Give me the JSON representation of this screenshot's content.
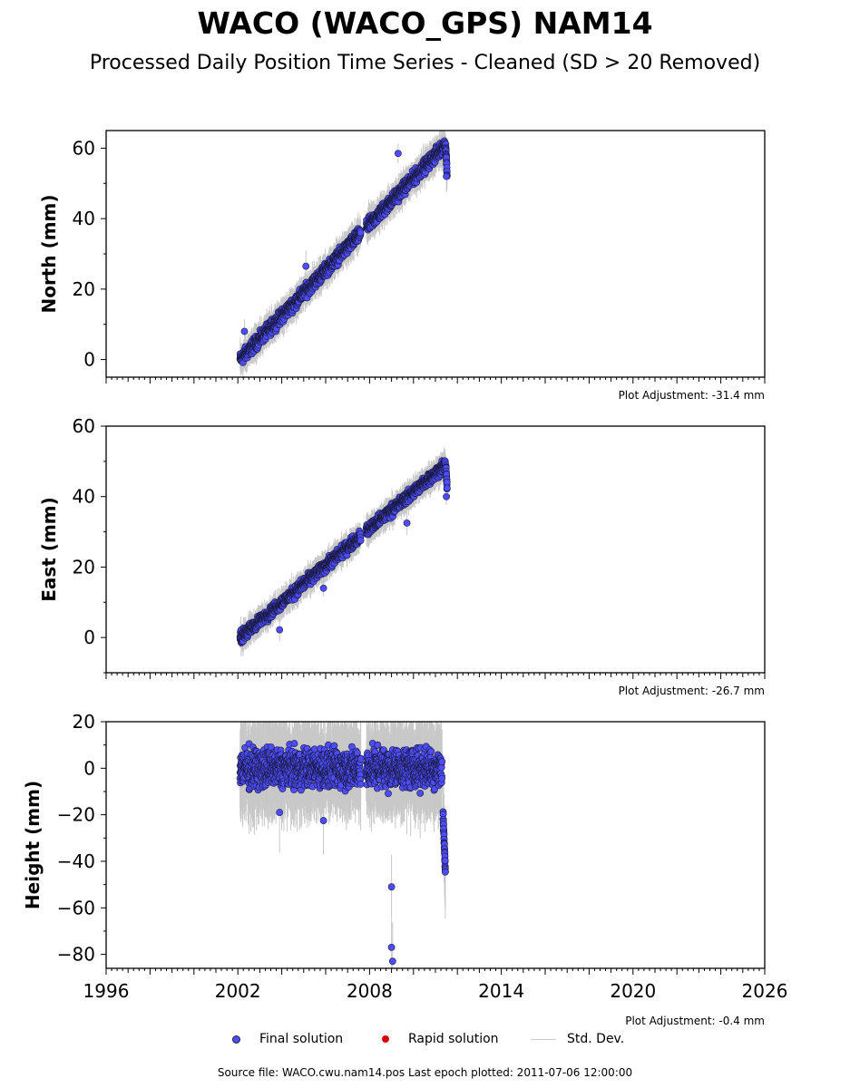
{
  "title": "WACO (WACO_GPS) NAM14",
  "subtitle": "Processed Daily Position Time Series - Cleaned (SD > 20 Removed)",
  "colors": {
    "final": "#4d4dff",
    "rapid": "#dd0000",
    "stddev": "#c8c8c8",
    "outline": "#000000"
  },
  "legend": {
    "final": "Final solution",
    "rapid": "Rapid solution",
    "stddev": "Std. Dev."
  },
  "footer": "Source file: WACO.cwu.nam14.pos  Last epoch plotted: 2011-07-06 12:00:00",
  "chart_data": [
    {
      "type": "scatter",
      "name": "north",
      "ylabel": "North (mm)",
      "adjustment": "Plot Adjustment: -31.4 mm",
      "xlim": [
        1996,
        2026
      ],
      "ylim": [
        -5,
        65
      ],
      "yticks": [
        0,
        20,
        40,
        60
      ],
      "trend": [
        [
          2002.1,
          0
        ],
        [
          2011.45,
          61
        ]
      ],
      "scatter": 1.6,
      "outliers": [
        [
          2002.3,
          8
        ],
        [
          2005.1,
          26.5
        ],
        [
          2009.3,
          58.5
        ],
        [
          2011.5,
          52
        ]
      ]
    },
    {
      "type": "scatter",
      "name": "east",
      "ylabel": "East (mm)",
      "adjustment": "Plot Adjustment: -26.7 mm",
      "xlim": [
        1996,
        2026
      ],
      "ylim": [
        -10,
        60
      ],
      "yticks": [
        0,
        20,
        40,
        60
      ],
      "trend": [
        [
          2002.1,
          0
        ],
        [
          2011.45,
          49
        ]
      ],
      "scatter": 1.4,
      "outliers": [
        [
          2003.9,
          2.2
        ],
        [
          2005.9,
          14
        ],
        [
          2009.7,
          32.5
        ],
        [
          2011.5,
          40
        ]
      ]
    },
    {
      "type": "scatter",
      "name": "height",
      "ylabel": "Height (mm)",
      "adjustment": "Plot Adjustment: -0.4 mm",
      "xlim": [
        1996,
        2026
      ],
      "ylim": [
        -86,
        20
      ],
      "yticks": [
        -80,
        -60,
        -40,
        -20,
        0,
        20
      ],
      "xticks": [
        1996,
        2002,
        2008,
        2014,
        2020,
        2026
      ],
      "trend": [
        [
          2002.1,
          0
        ],
        [
          2011.3,
          0
        ]
      ],
      "scatter": 7,
      "outliers": [
        [
          2003.9,
          -19
        ],
        [
          2005.9,
          -22.5
        ],
        [
          2009.0,
          -51
        ],
        [
          2009.0,
          -77
        ],
        [
          2009.05,
          -83
        ]
      ],
      "tail": [
        [
          2011.35,
          -20
        ],
        [
          2011.45,
          -44
        ]
      ]
    }
  ]
}
